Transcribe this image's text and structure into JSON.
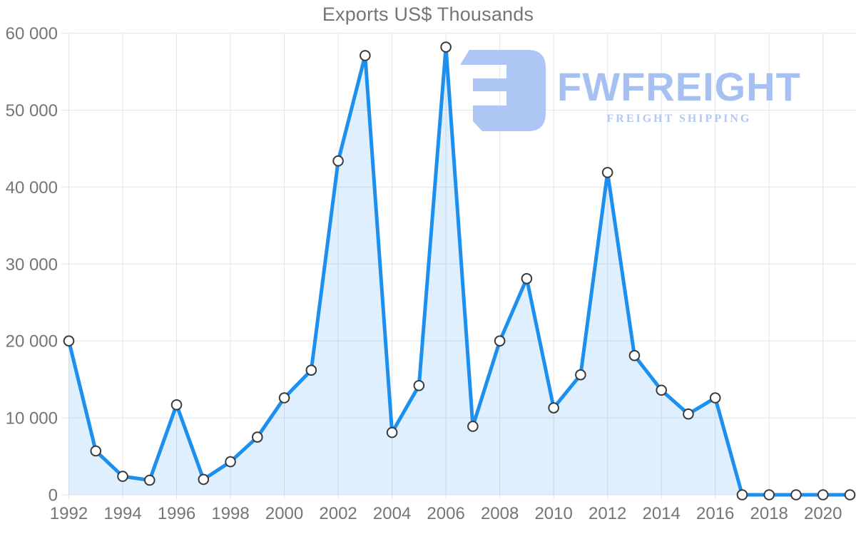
{
  "title": "Exports US$ Thousands",
  "colors": {
    "line": "#1d8fee",
    "area": "rgba(30, 144, 238, 0.14)",
    "marker_fill": "#ffffff",
    "marker_stroke": "#3a3a3a",
    "grid": "#e4e4e4",
    "axis_label": "#757575",
    "title": "#757575"
  },
  "watermark": {
    "brand": "FWFREIGHT",
    "tagline": "FREIGHT SHIPPING",
    "mark_color": "#adc6f3",
    "brand_color": "#a6c1f1",
    "tagline_color": "#b3c8f1"
  },
  "chart_data": {
    "type": "area",
    "title": "Exports US$ Thousands",
    "xlabel": "",
    "ylabel": "",
    "grid": true,
    "legend": false,
    "ylim": [
      0,
      60000
    ],
    "x": [
      1992,
      1993,
      1994,
      1995,
      1996,
      1997,
      1998,
      1999,
      2000,
      2001,
      2002,
      2003,
      2004,
      2005,
      2006,
      2007,
      2008,
      2009,
      2010,
      2011,
      2012,
      2013,
      2014,
      2015,
      2016,
      2017,
      2018,
      2019,
      2020,
      2021
    ],
    "values": [
      20000,
      5700,
      2400,
      1900,
      11700,
      2000,
      4300,
      7500,
      12600,
      16200,
      43400,
      57100,
      8100,
      14200,
      58200,
      8900,
      20000,
      28100,
      11300,
      15600,
      41900,
      18100,
      13600,
      10500,
      12600,
      0,
      0,
      0,
      0,
      0
    ],
    "x_ticks": [
      1992,
      1994,
      1996,
      1998,
      2000,
      2002,
      2004,
      2006,
      2008,
      2010,
      2012,
      2014,
      2016,
      2018,
      2020
    ],
    "y_ticks": [
      {
        "value": 0,
        "label": "0"
      },
      {
        "value": 10000,
        "label": "10 000"
      },
      {
        "value": 20000,
        "label": "20 000"
      },
      {
        "value": 30000,
        "label": "30 000"
      },
      {
        "value": 40000,
        "label": "40 000"
      },
      {
        "value": 50000,
        "label": "50 000"
      },
      {
        "value": 60000,
        "label": "60 000"
      }
    ]
  }
}
